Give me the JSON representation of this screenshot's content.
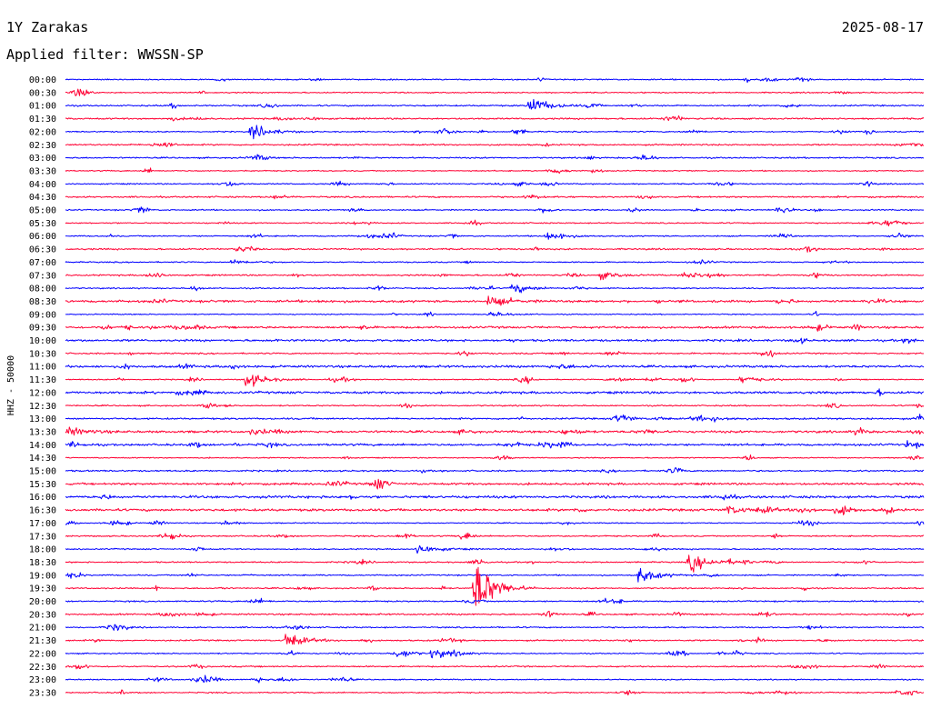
{
  "header": {
    "station": "1Y Zarakas",
    "date": "2025-08-17",
    "filter_label": "Applied filter: WWSSN-SP"
  },
  "colors": {
    "trace_a": "#0000ff",
    "trace_b": "#ff0033",
    "background": "#ffffff",
    "text": "#000000"
  },
  "chart_data": {
    "type": "line",
    "title": "",
    "ylabel": "HHZ - 50000",
    "xlabel": "",
    "grid": false,
    "legend": "none",
    "row_labels": [
      "00:00",
      "00:30",
      "01:00",
      "01:30",
      "02:00",
      "02:30",
      "03:00",
      "03:30",
      "04:00",
      "04:30",
      "05:00",
      "05:30",
      "06:00",
      "06:30",
      "07:00",
      "07:30",
      "08:00",
      "08:30",
      "09:00",
      "09:30",
      "10:00",
      "10:30",
      "11:00",
      "11:30",
      "12:00",
      "12:30",
      "13:00",
      "13:30",
      "14:00",
      "14:30",
      "15:00",
      "15:30",
      "16:00",
      "16:30",
      "17:00",
      "17:30",
      "18:00",
      "18:30",
      "19:00",
      "19:30",
      "20:00",
      "20:30",
      "21:00",
      "21:30",
      "22:00",
      "22:30",
      "23:00",
      "23:30"
    ],
    "row_color_cycle": [
      "trace_a",
      "trace_b"
    ],
    "row_duration_min": 30,
    "events": [
      {
        "row": 2,
        "minute": 16.2,
        "amplitude": 1.6
      },
      {
        "row": 4,
        "minute": 6.5,
        "amplitude": 1.3
      },
      {
        "row": 12,
        "minute": 16.8,
        "amplitude": 0.6
      },
      {
        "row": 14,
        "minute": 5.8,
        "amplitude": 0.4
      },
      {
        "row": 15,
        "minute": 18.7,
        "amplitude": 0.6
      },
      {
        "row": 15,
        "minute": 21.6,
        "amplitude": 0.6
      },
      {
        "row": 16,
        "minute": 15.6,
        "amplitude": 0.9
      },
      {
        "row": 17,
        "minute": 14.8,
        "amplitude": 0.9
      },
      {
        "row": 18,
        "minute": 14.8,
        "amplitude": 0.5
      },
      {
        "row": 23,
        "minute": 6.3,
        "amplitude": 1.4
      },
      {
        "row": 23,
        "minute": 23.6,
        "amplitude": 0.7
      },
      {
        "row": 26,
        "minute": 22.6,
        "amplitude": 0.5
      },
      {
        "row": 26,
        "minute": 29.8,
        "amplitude": 0.8
      },
      {
        "row": 27,
        "minute": 0.1,
        "amplitude": 0.7
      },
      {
        "row": 27,
        "minute": 6.5,
        "amplitude": 0.5
      },
      {
        "row": 28,
        "minute": 29.4,
        "amplitude": 0.5
      },
      {
        "row": 33,
        "minute": 23.1,
        "amplitude": 0.7
      },
      {
        "row": 36,
        "minute": 12.3,
        "amplitude": 0.9
      },
      {
        "row": 37,
        "minute": 21.8,
        "amplitude": 1.6
      },
      {
        "row": 38,
        "minute": 20.0,
        "amplitude": 1.4
      },
      {
        "row": 39,
        "minute": 14.3,
        "amplitude": 5.5
      },
      {
        "row": 43,
        "minute": 7.7,
        "amplitude": 1.3
      },
      {
        "row": 44,
        "minute": 12.8,
        "amplitude": 0.9
      }
    ]
  }
}
